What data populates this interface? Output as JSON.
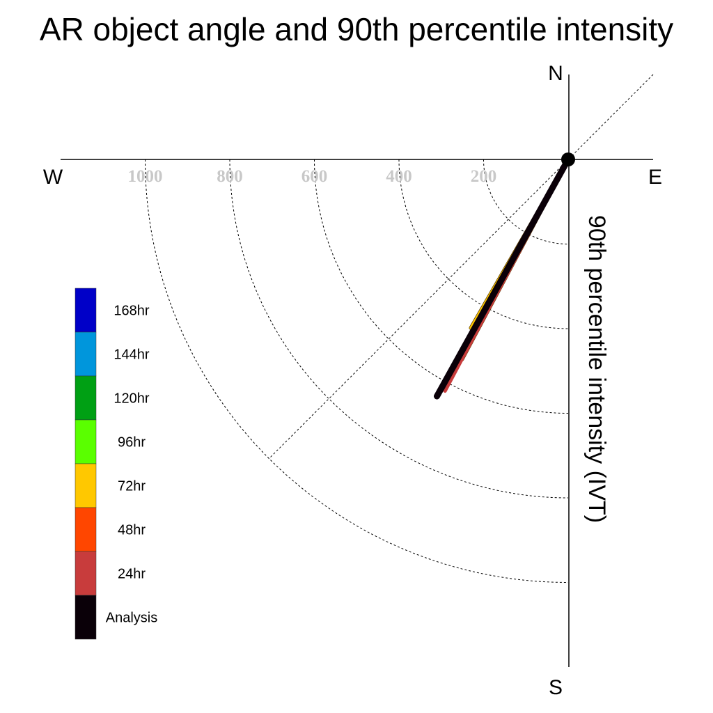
{
  "chart_data": {
    "type": "polar",
    "title": "AR object angle and 90th percentile intensity",
    "ylabel": "90th percentile intensity (IVT)",
    "compass": {
      "north": "N",
      "south": "S",
      "east": "E",
      "west": "W"
    },
    "radial_ticks": [
      "200",
      "400",
      "600",
      "800",
      "1000"
    ],
    "radial_tick_values": [
      200,
      400,
      600,
      800,
      1000
    ],
    "radial_range": [
      0,
      1200
    ],
    "grid": true,
    "legend_placement": "bottom-left",
    "legend": [
      {
        "label": "168hr",
        "color": "#0000C8"
      },
      {
        "label": "144hr",
        "color": "#0096DC"
      },
      {
        "label": "120hr",
        "color": "#00A014"
      },
      {
        "label": "96hr",
        "color": "#5AFF00"
      },
      {
        "label": "72hr",
        "color": "#FFC800"
      },
      {
        "label": "48hr",
        "color": "#FF4600"
      },
      {
        "label": "24hr",
        "color": "#C83C3C"
      },
      {
        "label": "Analysis",
        "color": "#0A0008"
      }
    ],
    "series": [
      {
        "name": "72hr",
        "color": "#FFC800",
        "angle_deg": 210,
        "intensity": 460
      },
      {
        "name": "48hr",
        "color": "#FF4600",
        "angle_deg": 208,
        "intensity": 535
      },
      {
        "name": "24hr",
        "color": "#C83C3C",
        "angle_deg": 208,
        "intensity": 620
      },
      {
        "name": "Analysis",
        "color": "#0A0008",
        "angle_deg": 209,
        "intensity": 640
      }
    ]
  }
}
